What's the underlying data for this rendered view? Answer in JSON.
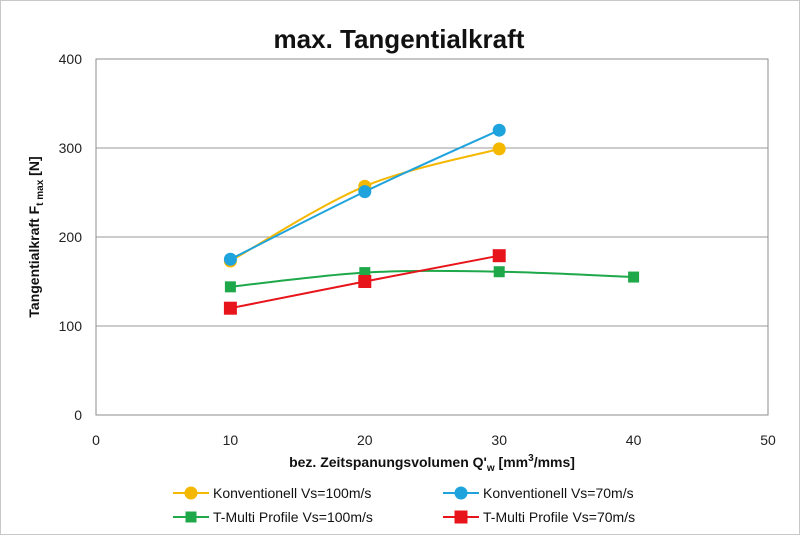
{
  "chart_data": {
    "type": "line",
    "title": "max. Tangentialkraft",
    "xlabel": {
      "main": "bez. Zeitspanungsvolumen Q'",
      "sub": "w",
      "tail1": " [mm",
      "sup": "3",
      "tail2": "/mms]"
    },
    "ylabel": {
      "main": "Tangentialkraft F",
      "sub": "t max",
      "tail": " [N]"
    },
    "xlim": [
      0,
      50
    ],
    "ylim": [
      0,
      400
    ],
    "xticks": [
      "0",
      "10",
      "20",
      "30",
      "40",
      "50"
    ],
    "yticks": [
      "0",
      "100",
      "200",
      "300",
      "400"
    ],
    "grid": "horizontal",
    "legend_position": "bottom",
    "series": [
      {
        "name": "Konventionell  Vs=100m/s",
        "color": "#F5B800",
        "marker": "circle",
        "x": [
          10,
          20,
          30
        ],
        "y": [
          173,
          257,
          299
        ]
      },
      {
        "name": "Konventionell  Vs=70m/s",
        "color": "#1FA3DC",
        "marker": "circle",
        "x": [
          10,
          20,
          30
        ],
        "y": [
          175,
          251,
          320
        ]
      },
      {
        "name": "T-Multi Profile  Vs=100m/s",
        "color": "#1EA84A",
        "marker": "square-small",
        "x": [
          10,
          20,
          30,
          40
        ],
        "y": [
          144,
          160,
          161,
          155
        ]
      },
      {
        "name": "T-Multi Profile  Vs=70m/s",
        "color": "#E8141B",
        "marker": "square",
        "x": [
          10,
          20,
          30
        ],
        "y": [
          120,
          150,
          179
        ]
      }
    ]
  }
}
